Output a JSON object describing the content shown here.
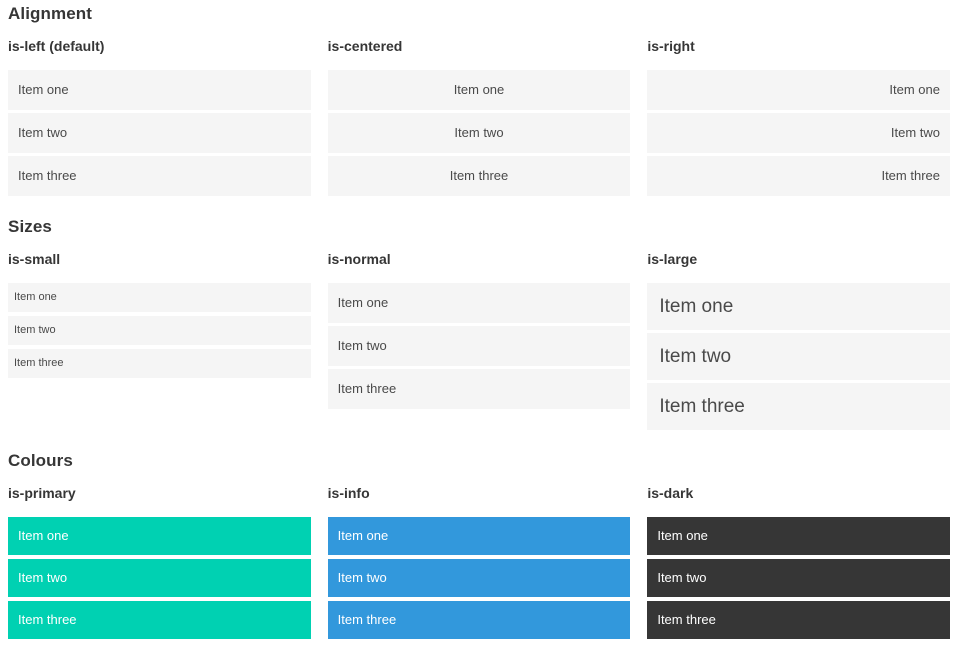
{
  "colors": {
    "item_background_light": "#f5f5f5",
    "item_text": "#4a4a4a",
    "heading_text": "#363636",
    "colour_item_text": "#ffffff"
  },
  "sections": [
    {
      "title": "Alignment",
      "columns": [
        {
          "label": "is-left (default)",
          "items": [
            "Item one",
            "Item two",
            "Item three"
          ]
        },
        {
          "label": "is-centered",
          "items": [
            "Item one",
            "Item two",
            "Item three"
          ]
        },
        {
          "label": "is-right",
          "items": [
            "Item one",
            "Item two",
            "Item three"
          ]
        }
      ]
    },
    {
      "title": "Sizes",
      "columns": [
        {
          "label": "is-small",
          "items": [
            "Item one",
            "Item two",
            "Item three"
          ]
        },
        {
          "label": "is-normal",
          "items": [
            "Item one",
            "Item two",
            "Item three"
          ]
        },
        {
          "label": "is-large",
          "items": [
            "Item one",
            "Item two",
            "Item three"
          ]
        }
      ]
    },
    {
      "title": "Colours",
      "columns": [
        {
          "label": "is-primary",
          "color": "#00d1b2",
          "items": [
            "Item one",
            "Item two",
            "Item three"
          ]
        },
        {
          "label": "is-info",
          "color": "#3298dc",
          "items": [
            "Item one",
            "Item two",
            "Item three"
          ]
        },
        {
          "label": "is-dark",
          "color": "#363636",
          "items": [
            "Item one",
            "Item two",
            "Item three"
          ]
        }
      ]
    }
  ]
}
